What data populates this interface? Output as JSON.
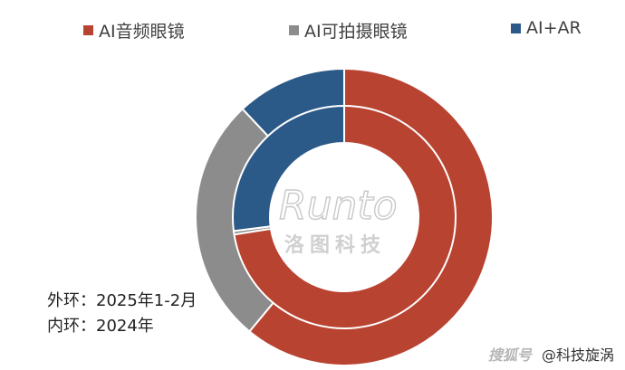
{
  "chart_data": {
    "type": "donut",
    "legend_position": "top",
    "series_labels": [
      "AI音频眼镜",
      "AI可拍摄眼镜",
      "AI+AR"
    ],
    "colors": [
      "#b94331",
      "#8c8c8c",
      "#2c5a88"
    ],
    "rings": [
      {
        "ring": "outer",
        "label": "外环：2025年1-2月",
        "values": [
          61,
          27,
          12
        ]
      },
      {
        "ring": "inner",
        "label": "内环：2024年",
        "values": [
          72.5,
          0.5,
          27
        ]
      }
    ]
  },
  "notes": {
    "outer": "外环：2025年1-2月",
    "inner": "内环：2024年"
  },
  "watermark": {
    "logo": "Runto",
    "sub": "洛图科技"
  },
  "footer": {
    "brand": "搜狐号",
    "handle": "@科技旋涡"
  }
}
